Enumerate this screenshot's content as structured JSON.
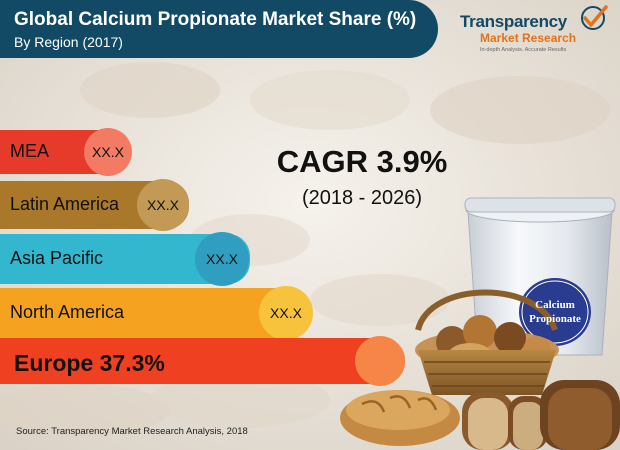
{
  "header": {
    "title": "Global Calcium Propionate Market Share (%)",
    "subtitle": "By Region (2017)"
  },
  "logo": {
    "line1": "Transparency",
    "line2": "Market Research",
    "line3": "In-depth Analysis. Accurate Results"
  },
  "cagr": {
    "headline": "CAGR 3.9%",
    "period": "(2018 - 2026)"
  },
  "product": {
    "bucket_label": "Calcium Propionate"
  },
  "source": "Source: Transparency Market Research Analysis, 2018",
  "colors": {
    "header": "#124a66",
    "mea_bar": "#e63a2b",
    "mea_circle": "#f37a63",
    "latam_bar": "#a9782a",
    "latam_circle": "#c29a55",
    "apac_bar": "#33b7cf",
    "apac_circle": "#2f9ec0",
    "na_bar": "#f4a21f",
    "na_circle": "#f7c23c",
    "eu_bar": "#ef4022",
    "eu_circle": "#f58648"
  },
  "chart_data": {
    "type": "bar",
    "title": "Global Calcium Propionate Market Share (%)",
    "subtitle": "By Region (2017)",
    "categories": [
      "MEA",
      "Latin America",
      "Asia Pacific",
      "North America",
      "Europe"
    ],
    "value_labels": [
      "XX.X",
      "XX.X",
      "XX.X",
      "XX.X",
      "37.3%"
    ],
    "values": [
      null,
      null,
      null,
      null,
      37.3
    ],
    "europe_text": "Europe  37.3%",
    "orientation": "horizontal",
    "annotation": "CAGR 3.9% (2018 - 2026)"
  }
}
